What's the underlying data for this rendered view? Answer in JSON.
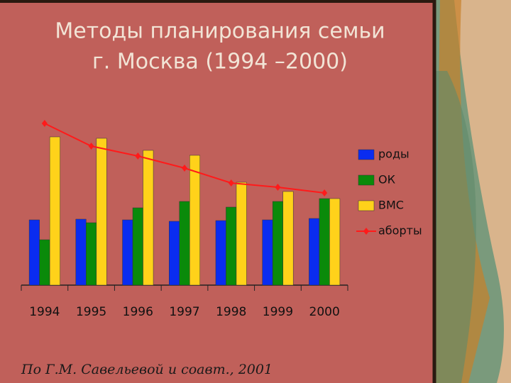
{
  "chart_data": {
    "type": "bar",
    "title": "Методы планирования семьи",
    "subtitle": "г. Москва (1994 –2000)",
    "source": "По Г.М. Савельевой и соавт., 2001",
    "categories": [
      "1994",
      "1995",
      "1996",
      "1997",
      "1998",
      "1999",
      "2000"
    ],
    "series": [
      {
        "name": "роды",
        "type": "bar",
        "color": "#0a2cf0",
        "values": [
          92,
          93,
          92,
          90,
          91,
          92,
          94
        ]
      },
      {
        "name": "ОК",
        "type": "bar",
        "color": "#0a8a0a",
        "values": [
          64,
          88,
          109,
          118,
          110,
          118,
          122
        ]
      },
      {
        "name": "ВМС",
        "type": "bar",
        "color": "#ffd21a",
        "values": [
          209,
          207,
          190,
          183,
          145,
          132,
          122
        ]
      },
      {
        "name": "аборты",
        "type": "line",
        "color": "#ff1a1a",
        "values": [
          228,
          196,
          182,
          165,
          144,
          138,
          130
        ]
      }
    ],
    "ylim": [
      0,
      250
    ],
    "legend": "right"
  }
}
